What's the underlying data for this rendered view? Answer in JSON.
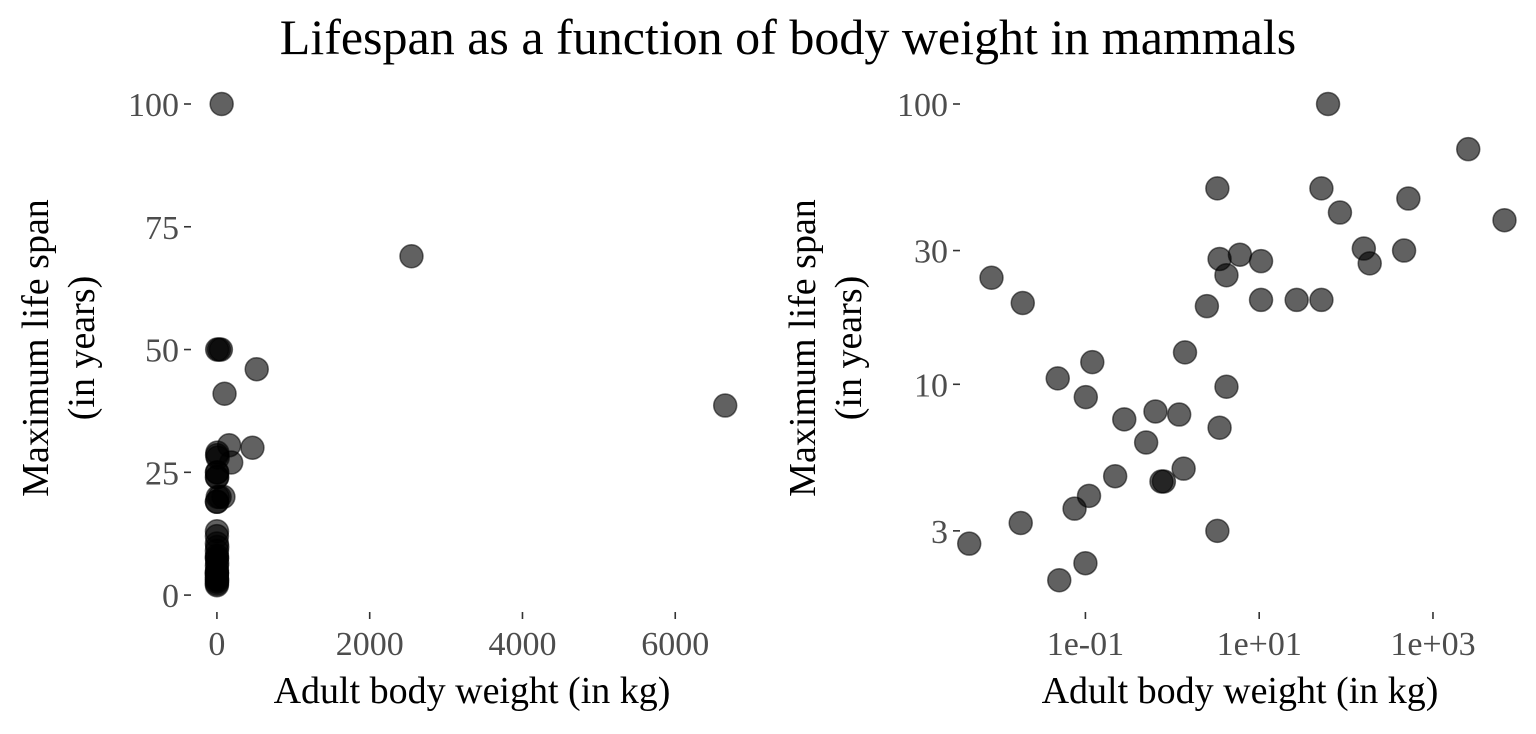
{
  "title": "Lifespan as a function of body weight in mammals",
  "colors": {
    "point": "#000000",
    "tick_text": "#4d4d4d",
    "title_text": "#000000"
  },
  "chart_data": [
    {
      "type": "scatter",
      "xlabel": "Adult body weight (in kg)",
      "ylabel_lines": [
        "Maximum life span",
        "(in years)"
      ],
      "x_scale": "linear",
      "y_scale": "linear",
      "xlim": [
        -300,
        6900
      ],
      "ylim": [
        -1,
        100
      ],
      "x_ticks": [
        {
          "value": 0,
          "label": "0"
        },
        {
          "value": 2000,
          "label": "2000"
        },
        {
          "value": 4000,
          "label": "4000"
        },
        {
          "value": 6000,
          "label": "6000"
        }
      ],
      "y_ticks": [
        {
          "value": 0,
          "label": "0"
        },
        {
          "value": 25,
          "label": "25"
        },
        {
          "value": 50,
          "label": "50"
        },
        {
          "value": 75,
          "label": "75"
        },
        {
          "value": 100,
          "label": "100"
        }
      ],
      "grid": false,
      "points": [
        {
          "x": 62,
          "y": 100
        },
        {
          "x": 2547,
          "y": 69
        },
        {
          "x": 6654,
          "y": 38.6
        },
        {
          "x": 521,
          "y": 46
        },
        {
          "x": 465,
          "y": 30
        },
        {
          "x": 187,
          "y": 27
        },
        {
          "x": 160,
          "y": 30.5
        },
        {
          "x": 100,
          "y": 41
        },
        {
          "x": 52,
          "y": 50
        },
        {
          "x": 27,
          "y": 50
        },
        {
          "x": 85,
          "y": 20
        },
        {
          "x": 36,
          "y": 20
        },
        {
          "x": 10.6,
          "y": 20
        },
        {
          "x": 1.4,
          "y": 19
        },
        {
          "x": 0.28,
          "y": 25
        },
        {
          "x": 0.0033,
          "y": 24
        },
        {
          "x": 0.023,
          "y": 19
        },
        {
          "x": 10.5,
          "y": 28
        },
        {
          "x": 3.5,
          "y": 25
        },
        {
          "x": 2.5,
          "y": 28.5
        },
        {
          "x": 6,
          "y": 29
        },
        {
          "x": 4,
          "y": 24
        },
        {
          "x": 3.3,
          "y": 50
        },
        {
          "x": 0.73,
          "y": 13
        },
        {
          "x": 0.12,
          "y": 12
        },
        {
          "x": 0.048,
          "y": 10.5
        },
        {
          "x": 4.2,
          "y": 9.8
        },
        {
          "x": 0.1,
          "y": 9
        },
        {
          "x": 0.25,
          "y": 8
        },
        {
          "x": 0.6,
          "y": 7.5
        },
        {
          "x": 1.41,
          "y": 7.5
        },
        {
          "x": 3.3,
          "y": 6.5
        },
        {
          "x": 0.5,
          "y": 6
        },
        {
          "x": 0.8,
          "y": 5
        },
        {
          "x": 0.4,
          "y": 4.5
        },
        {
          "x": 0.43,
          "y": 4.5
        },
        {
          "x": 0.064,
          "y": 4.5
        },
        {
          "x": 0.11,
          "y": 4
        },
        {
          "x": 0.075,
          "y": 3.5
        },
        {
          "x": 0.023,
          "y": 3.2
        },
        {
          "x": 3.3,
          "y": 3
        },
        {
          "x": 0.005,
          "y": 2.7
        },
        {
          "x": 0.101,
          "y": 2.3
        },
        {
          "x": 0.048,
          "y": 2
        }
      ]
    },
    {
      "type": "scatter",
      "xlabel": "Adult body weight (in kg)",
      "ylabel_lines": [
        "Maximum life span",
        "(in years)"
      ],
      "x_scale": "log10",
      "y_scale": "log10",
      "xlim": [
        0.0039,
        7700
      ],
      "ylim": [
        1.7,
        100
      ],
      "x_ticks": [
        {
          "value": 0.1,
          "label": "1e-01"
        },
        {
          "value": 10,
          "label": "1e+01"
        },
        {
          "value": 1000,
          "label": "1e+03"
        }
      ],
      "y_ticks": [
        {
          "value": 3,
          "label": "3"
        },
        {
          "value": 10,
          "label": "10"
        },
        {
          "value": 30,
          "label": "30"
        },
        {
          "value": 100,
          "label": "100"
        }
      ],
      "grid": false,
      "points": [
        {
          "x": 62,
          "y": 100
        },
        {
          "x": 2547,
          "y": 69
        },
        {
          "x": 6654,
          "y": 38.5
        },
        {
          "x": 521,
          "y": 46
        },
        {
          "x": 465,
          "y": 30
        },
        {
          "x": 187,
          "y": 27
        },
        {
          "x": 160,
          "y": 30.5
        },
        {
          "x": 85,
          "y": 41
        },
        {
          "x": 52,
          "y": 50
        },
        {
          "x": 3.3,
          "y": 50
        },
        {
          "x": 52,
          "y": 20
        },
        {
          "x": 27,
          "y": 20
        },
        {
          "x": 10.5,
          "y": 20
        },
        {
          "x": 10.5,
          "y": 27.5
        },
        {
          "x": 6,
          "y": 29
        },
        {
          "x": 3.5,
          "y": 28
        },
        {
          "x": 4.2,
          "y": 24.5
        },
        {
          "x": 2.5,
          "y": 19
        },
        {
          "x": 0.0083,
          "y": 24
        },
        {
          "x": 0.019,
          "y": 19.5
        },
        {
          "x": 1.4,
          "y": 13
        },
        {
          "x": 0.12,
          "y": 12
        },
        {
          "x": 0.048,
          "y": 10.5
        },
        {
          "x": 4.2,
          "y": 9.8
        },
        {
          "x": 0.101,
          "y": 9
        },
        {
          "x": 0.64,
          "y": 8
        },
        {
          "x": 1.2,
          "y": 7.8
        },
        {
          "x": 0.28,
          "y": 7.5
        },
        {
          "x": 3.5,
          "y": 7
        },
        {
          "x": 0.5,
          "y": 6.2
        },
        {
          "x": 1.35,
          "y": 5
        },
        {
          "x": 0.8,
          "y": 4.5
        },
        {
          "x": 0.75,
          "y": 4.5
        },
        {
          "x": 0.22,
          "y": 4.7
        },
        {
          "x": 0.11,
          "y": 4
        },
        {
          "x": 0.075,
          "y": 3.6
        },
        {
          "x": 0.018,
          "y": 3.2
        },
        {
          "x": 3.3,
          "y": 3
        },
        {
          "x": 0.0046,
          "y": 2.7
        },
        {
          "x": 0.1,
          "y": 2.3
        },
        {
          "x": 0.05,
          "y": 2
        }
      ]
    }
  ]
}
